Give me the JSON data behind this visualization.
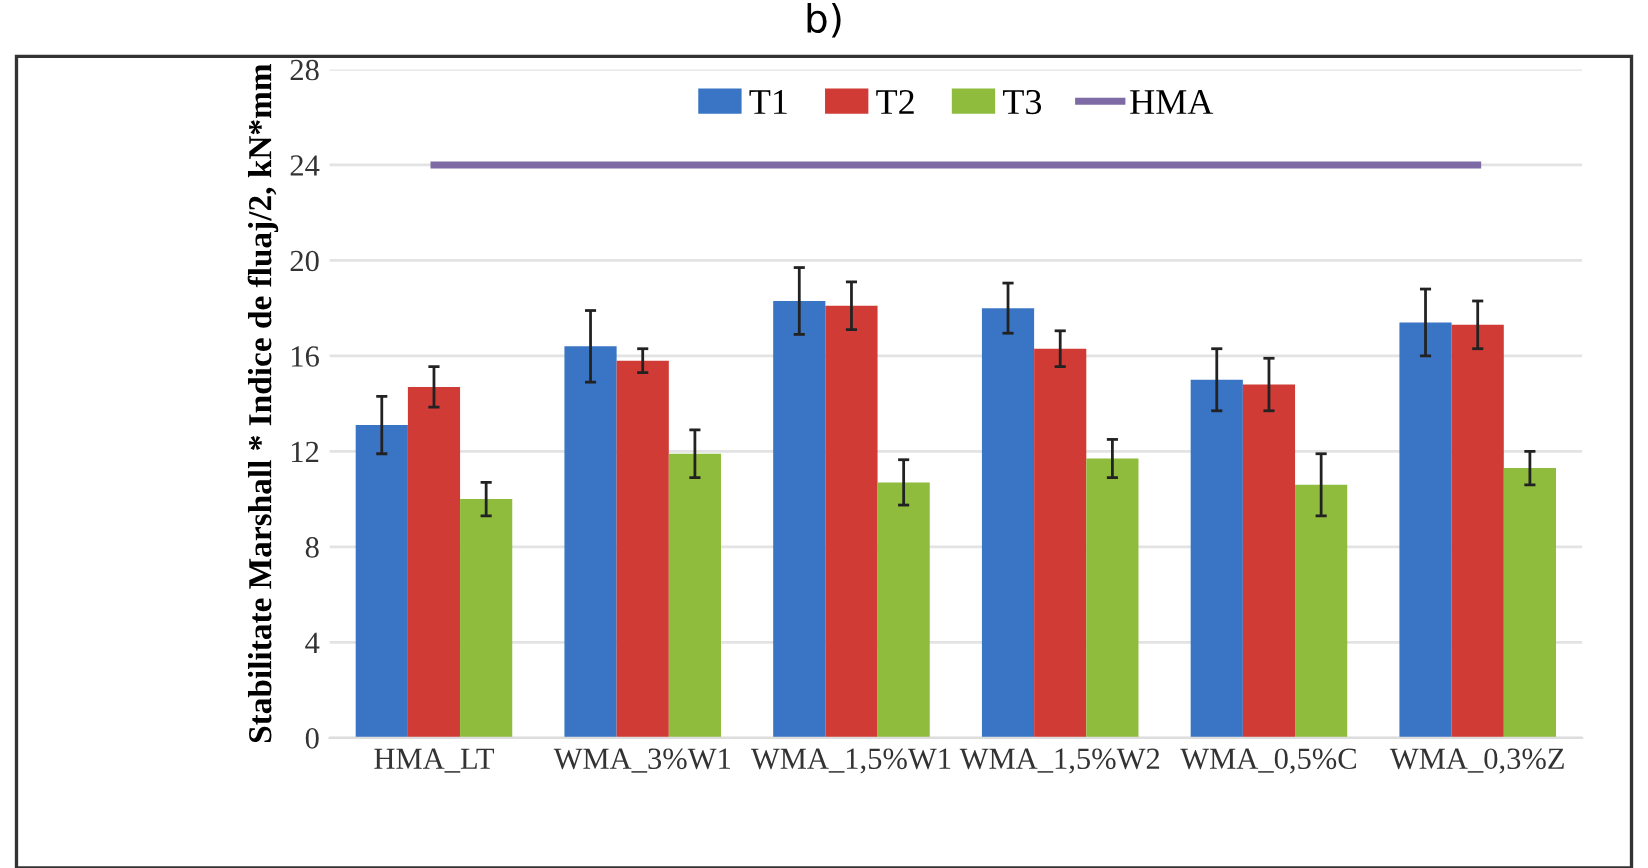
{
  "chart_data": {
    "type": "bar",
    "title": "b)",
    "ylabel": "Stabilitate Marshall * Indice de fluaj/2, kN*mm",
    "categories": [
      "HMA_LT",
      "WMA_3%W1",
      "WMA_1,5%W1",
      "WMA_1,5%W2",
      "WMA_0,5%C",
      "WMA_0,3%Z"
    ],
    "series": [
      {
        "name": "T1",
        "color": "#3a74c4",
        "values": [
          13.1,
          16.4,
          18.3,
          18.0,
          15.0,
          17.4
        ],
        "errors": [
          1.2,
          1.5,
          1.4,
          1.05,
          1.3,
          1.4
        ]
      },
      {
        "name": "T2",
        "color": "#d03b36",
        "values": [
          14.7,
          15.8,
          18.1,
          16.3,
          14.8,
          17.3
        ],
        "errors": [
          0.85,
          0.5,
          1.0,
          0.75,
          1.1,
          1.0
        ]
      },
      {
        "name": "T3",
        "color": "#8fbc3c",
        "values": [
          10.0,
          11.9,
          10.7,
          11.7,
          10.6,
          11.3
        ],
        "errors": [
          0.7,
          1.0,
          0.95,
          0.8,
          1.3,
          0.7
        ]
      },
      {
        "name": "HMA",
        "type": "line",
        "color": "#7e6aa5",
        "values": [
          24,
          24,
          24,
          24,
          24,
          24
        ],
        "marker": "none"
      }
    ],
    "ylim": [
      0,
      28
    ],
    "yticks": [
      0,
      4,
      8,
      12,
      16,
      20,
      24,
      28
    ],
    "grid": "y",
    "legend": "top"
  }
}
